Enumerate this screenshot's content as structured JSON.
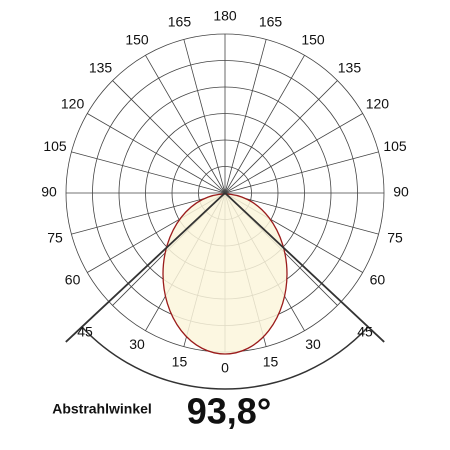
{
  "angle_labels": {
    "top": "180",
    "left": [
      "165",
      "150",
      "135",
      "120",
      "105",
      "90",
      "75",
      "60",
      "45",
      "30",
      "15"
    ],
    "right": [
      "165",
      "150",
      "135",
      "120",
      "105",
      "90",
      "75",
      "60",
      "45",
      "30",
      "15"
    ],
    "bottom": "0"
  },
  "caption": {
    "label": "Abstrahlwinkel",
    "value": "93,8°"
  }
}
